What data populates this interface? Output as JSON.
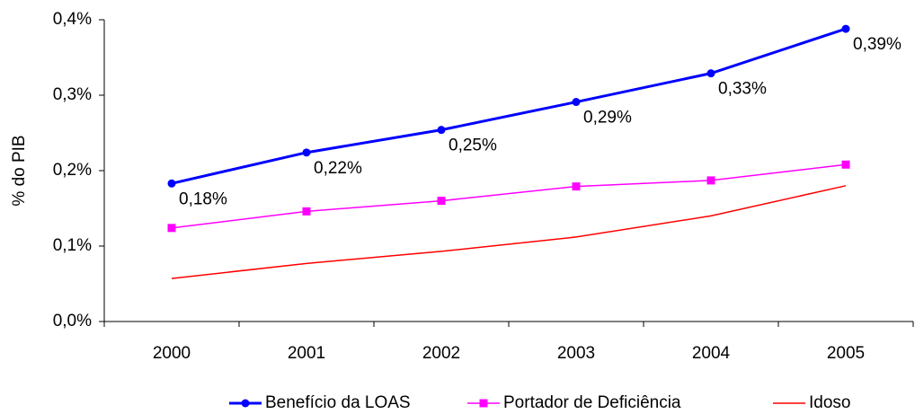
{
  "chart_data": {
    "type": "line",
    "y_label": "% do PIB",
    "categories": [
      "2000",
      "2001",
      "2002",
      "2003",
      "2004",
      "2005"
    ],
    "ylim": [
      0,
      0.4
    ],
    "yticks": [
      {
        "value": 0,
        "label": "0,0%"
      },
      {
        "value": 0.1,
        "label": "0,1%"
      },
      {
        "value": 0.2,
        "label": "0,2%"
      },
      {
        "value": 0.3,
        "label": "0,3%"
      },
      {
        "value": 0.4,
        "label": "0,4%"
      }
    ],
    "series": [
      {
        "name": "Benefício da LOAS",
        "color": "#0000ff",
        "marker": "circle",
        "values": [
          0.183,
          0.224,
          0.254,
          0.291,
          0.329,
          0.388
        ],
        "value_labels": [
          "0,18%",
          "0,22%",
          "0,25%",
          "0,29%",
          "0,33%",
          "0,39%"
        ]
      },
      {
        "name": "Portador de Deficiência",
        "color": "#ff00ff",
        "marker": "square",
        "values": [
          0.124,
          0.146,
          0.16,
          0.179,
          0.187,
          0.208
        ]
      },
      {
        "name": "Idoso",
        "color": "#ff0000",
        "marker": "none",
        "values": [
          0.057,
          0.077,
          0.093,
          0.112,
          0.14,
          0.18
        ]
      }
    ]
  }
}
